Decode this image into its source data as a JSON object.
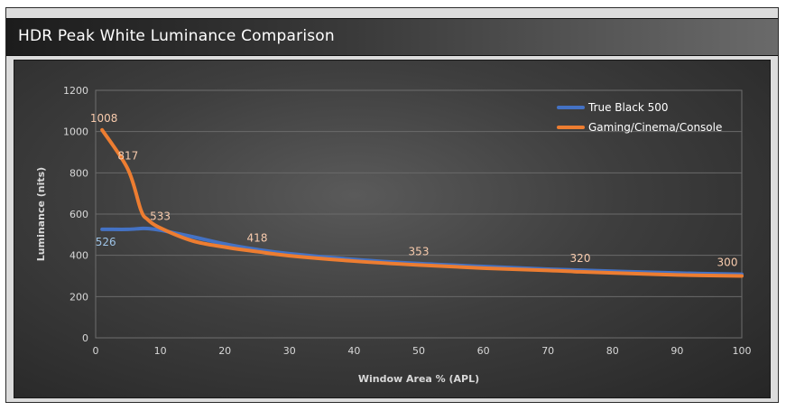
{
  "header": {
    "title": "HDR Peak White Luminance Comparison"
  },
  "colors": {
    "series_blue": "#4472c4",
    "series_orange": "#ed7d31",
    "label_blue": "#9dc3e6",
    "label_orange": "#f8cbad"
  },
  "chart_data": {
    "type": "line",
    "title": "",
    "xlabel": "Window Area % (APL)",
    "ylabel": "Luminance (nits)",
    "xlim": [
      0,
      100
    ],
    "ylim": [
      0,
      1200
    ],
    "xticks": [
      0,
      10,
      20,
      30,
      40,
      50,
      60,
      70,
      80,
      90,
      100
    ],
    "yticks": [
      0,
      200,
      400,
      600,
      800,
      1000,
      1200
    ],
    "grid": "horizontal",
    "legend_position": "top-right",
    "series": [
      {
        "name": "True Black 500",
        "color": "#4472c4",
        "x": [
          1,
          2,
          5,
          7,
          8,
          10,
          15,
          20,
          25,
          30,
          40,
          50,
          60,
          70,
          80,
          90,
          100
        ],
        "y": [
          526,
          526,
          526,
          530,
          530,
          522,
          490,
          455,
          428,
          408,
          380,
          360,
          346,
          333,
          323,
          314,
          308
        ],
        "labels": [
          {
            "x": 1,
            "y": 526,
            "text": "526"
          }
        ]
      },
      {
        "name": "Gaming/Cinema/Console",
        "color": "#ed7d31",
        "x": [
          1,
          5,
          7,
          8,
          10,
          15,
          20,
          25,
          30,
          40,
          50,
          60,
          70,
          75,
          80,
          90,
          100
        ],
        "y": [
          1008,
          817,
          620,
          575,
          533,
          470,
          440,
          418,
          398,
          372,
          353,
          338,
          327,
          320,
          315,
          305,
          300
        ],
        "labels": [
          {
            "x": 1,
            "y": 1008,
            "text": "1008"
          },
          {
            "x": 5,
            "y": 817,
            "text": "817"
          },
          {
            "x": 10,
            "y": 533,
            "text": "533"
          },
          {
            "x": 25,
            "y": 418,
            "text": "418"
          },
          {
            "x": 50,
            "y": 353,
            "text": "353"
          },
          {
            "x": 75,
            "y": 320,
            "text": "320"
          },
          {
            "x": 100,
            "y": 300,
            "text": "300"
          }
        ]
      }
    ]
  }
}
